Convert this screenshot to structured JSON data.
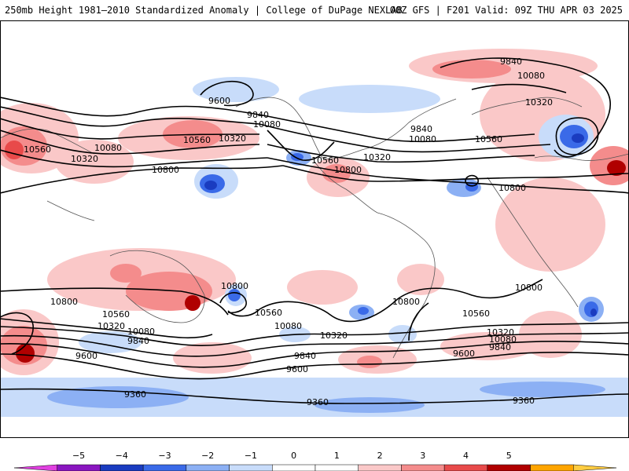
{
  "header": {
    "left_title": "250mb Height 1981–2010 Standardized Anomaly | College of DuPage NEXLAB",
    "right_title": "00Z GFS | F201 Valid: 09Z THU APR 03 2025"
  },
  "contour_labels": {
    "l9840_np": "9840",
    "l10080_np": "10080",
    "l10320_eur": "10320",
    "l9600_pac": "9600",
    "l9840_pac": "9840",
    "l10080_pac": "10080",
    "l10560_asia": "10560",
    "l10080_asia": "10080",
    "l10320_asia": "10320",
    "l10560_pac": "10560",
    "l10320_pac": "10320",
    "l10800_pac": "10800",
    "l10560_us": "10560",
    "l10800_us": "10800",
    "l10320_us": "10320",
    "l9840_atl": "9840",
    "l10080_atl": "10080",
    "l10560_atl": "10560",
    "l10800_atl": "10800",
    "l10800_aus": "10800",
    "l10800_spac": "10800",
    "l10560_aus": "10560",
    "l10320_aus": "10320",
    "l10080_aus": "10080",
    "l9840_aus": "9840",
    "l9600_aus": "9600",
    "l10560_spac": "10560",
    "l10080_spac": "10080",
    "l10320_spac": "10320",
    "l9840_spac": "9840",
    "l9600_spac": "9600",
    "l10800_sam": "10800",
    "l10800_satl": "10800",
    "l10560_satl": "10560",
    "l10320_satl": "10320",
    "l10080_satl": "10080",
    "l9840_satl": "9840",
    "l9600_satl": "9600",
    "l9360_w": "9360",
    "l9360_c": "9360",
    "l9360_e": "9360"
  },
  "legend": {
    "ticks": [
      "−5",
      "−4",
      "−3",
      "−2",
      "−1",
      "0",
      "1",
      "2",
      "3",
      "4",
      "5"
    ],
    "colors": [
      "#e040e0",
      "#8a16c0",
      "#1a3cc0",
      "#3a6ae8",
      "#8cb0f4",
      "#c8dcfa",
      "#ffffff",
      "#ffffff",
      "#fac8c8",
      "#f48c8c",
      "#e84a4a",
      "#b00000",
      "#ffa500",
      "#ffcc40"
    ]
  }
}
